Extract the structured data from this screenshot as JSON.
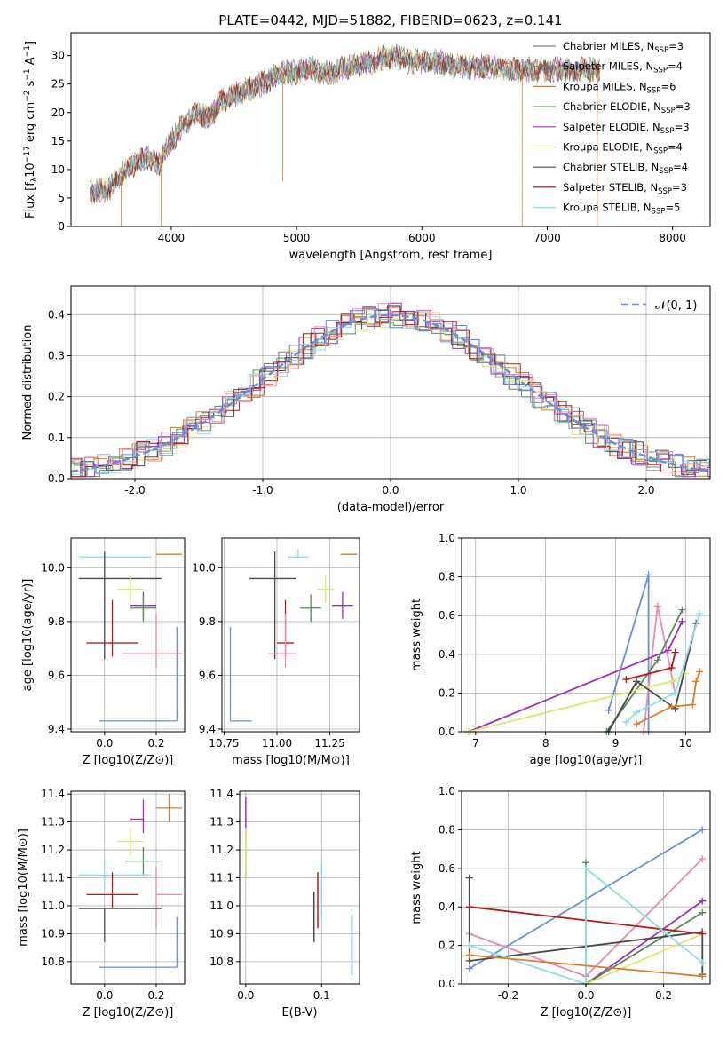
{
  "title": "PLATE=0442, MJD=51882, FIBERID=0623, z=0.141",
  "colors": {
    "Chabrier MILES": "#808080",
    "Salpeter MILES": "#808080",
    "Kroupa MILES": "#e07b28",
    "Chabrier ELODIE": "#5a8a5a",
    "Salpeter ELODIE": "#9b30c0",
    "Kroupa ELODIE": "#dce86a",
    "Chabrier STELIB": "#4a4a4a",
    "Salpeter STELIB": "#b21c1c",
    "Kroupa STELIB": "#8fdde4",
    "pink": "#e88ab4",
    "blue": "#6a8fd8",
    "gray": "#555555"
  },
  "chart_data": [
    {
      "type": "line",
      "xlabel": "wavelength [Angstrom, rest frame]",
      "ylabel_parts": [
        "Flux [f",
        "λ",
        "10",
        "−17",
        " erg cm",
        "−2",
        " s",
        "−1",
        " A",
        "−1",
        "]"
      ],
      "xlim": [
        3200,
        8300
      ],
      "ylim": [
        0,
        34
      ],
      "xticks": [
        4000,
        5000,
        6000,
        7000,
        8000
      ],
      "yticks": [
        0,
        5,
        10,
        15,
        20,
        25,
        30
      ],
      "continuum": {
        "x": [
          3350,
          3500,
          3600,
          3700,
          3800,
          3900,
          4000,
          4100,
          4200,
          4300,
          4400,
          4500,
          4600,
          4700,
          4800,
          4900,
          5000,
          5100,
          5200,
          5300,
          5400,
          5500,
          5600,
          5700,
          5800,
          5900,
          6000,
          6100,
          6200,
          6300,
          6400,
          6500,
          6600,
          6700,
          6800,
          6900,
          7000,
          7100,
          7200,
          7300,
          7400
        ],
        "y": [
          6,
          6.5,
          9,
          11,
          12,
          11,
          15,
          18,
          20,
          19,
          22,
          23,
          24,
          25,
          26,
          27,
          27,
          28,
          27,
          27,
          28,
          28.5,
          29,
          29.5,
          30,
          29,
          29,
          29,
          28.5,
          28,
          28,
          28,
          28,
          27.5,
          27.5,
          27.5,
          27.5,
          27.5,
          27.5,
          27.5,
          27.5
        ]
      },
      "legend": [
        {
          "label": "Chabrier MILES, N",
          "sub": "SSP",
          "val": "=3",
          "color": "#808080"
        },
        {
          "label": "Salpeter MILES, N",
          "sub": "SSP",
          "val": "=4",
          "color": "#808080"
        },
        {
          "label": "Kroupa MILES, N",
          "sub": "SSP",
          "val": "=6",
          "color": "#e07b28"
        },
        {
          "label": "Chabrier ELODIE, N",
          "sub": "SSP",
          "val": "=3",
          "color": "#5a8a5a"
        },
        {
          "label": "Salpeter ELODIE, N",
          "sub": "SSP",
          "val": "=3",
          "color": "#9b30c0"
        },
        {
          "label": "Kroupa ELODIE, N",
          "sub": "SSP",
          "val": "=4",
          "color": "#dce86a"
        },
        {
          "label": "Chabrier STELIB, N",
          "sub": "SSP",
          "val": "=4",
          "color": "#4a4a4a"
        },
        {
          "label": "Salpeter STELIB, N",
          "sub": "SSP",
          "val": "=3",
          "color": "#b21c1c"
        },
        {
          "label": "Kroupa STELIB, N",
          "sub": "SSP",
          "val": "=5",
          "color": "#8fdde4"
        }
      ]
    },
    {
      "type": "histogram",
      "xlabel": "(data-model)/error",
      "ylabel": "Normed distribution",
      "xlim": [
        -2.5,
        2.5
      ],
      "ylim": [
        0,
        0.47
      ],
      "xticks": [
        -2,
        -1,
        0,
        1,
        2
      ],
      "yticks": [
        0.0,
        0.1,
        0.2,
        0.3,
        0.4
      ],
      "legend": "𝒩(0, 1)",
      "bin_width": 0.1,
      "series": [
        {
          "color": "#808080",
          "offset": 0.01
        },
        {
          "color": "#e07b28",
          "offset": -0.02
        },
        {
          "color": "#5a8a5a",
          "offset": 0.025
        },
        {
          "color": "#9b30c0",
          "offset": -0.015
        },
        {
          "color": "#dce86a",
          "offset": 0.02
        },
        {
          "color": "#4a4a4a",
          "offset": -0.025
        },
        {
          "color": "#b21c1c",
          "offset": 0.015
        },
        {
          "color": "#8fdde4",
          "offset": -0.01
        },
        {
          "color": "#e88ab4",
          "offset": 0.005
        },
        {
          "color": "#6a8fd8",
          "offset": -0.005
        }
      ]
    },
    {
      "type": "scatter",
      "xlabel": "Z [log10(Z/Z⊙)]",
      "ylabel": "age  [log10(age/yr)]",
      "xlim": [
        -0.13,
        0.31
      ],
      "ylim": [
        9.39,
        10.11
      ],
      "xticks": [
        0.0,
        0.2
      ],
      "yticks": [
        9.4,
        9.6,
        9.8,
        10.0
      ],
      "points": [
        {
          "x": 0.0,
          "y": 10.04,
          "xerr": [
            0.1,
            0.18
          ],
          "yerr": [
            0.0,
            0.0
          ],
          "color": "#8fdde4"
        },
        {
          "x": 0.25,
          "y": 10.05,
          "xerr": [
            0.05,
            0.05
          ],
          "yerr": [
            0.0,
            0.0
          ],
          "color": "#e07b28"
        },
        {
          "x": 0.0,
          "y": 9.96,
          "xerr": [
            0.1,
            0.22
          ],
          "yerr": [
            0.3,
            0.1
          ],
          "color": "#4a4a4a"
        },
        {
          "x": 0.1,
          "y": 9.92,
          "xerr": [
            0.05,
            0.05
          ],
          "yerr": [
            0.05,
            0.05
          ],
          "color": "#dce86a"
        },
        {
          "x": 0.15,
          "y": 9.86,
          "xerr": [
            0.05,
            0.05
          ],
          "yerr": [
            0.05,
            0.05
          ],
          "color": "#9b30c0"
        },
        {
          "x": 0.15,
          "y": 9.85,
          "xerr": [
            0.05,
            0.05
          ],
          "yerr": [
            0.05,
            0.05
          ],
          "color": "#5a8a5a"
        },
        {
          "x": 0.03,
          "y": 9.72,
          "xerr": [
            0.1,
            0.1
          ],
          "yerr": [
            0.05,
            0.16
          ],
          "color": "#b21c1c"
        },
        {
          "x": 0.2,
          "y": 9.68,
          "xerr": [
            0.13,
            0.1
          ],
          "yerr": [
            0.05,
            0.15
          ],
          "color": "#e88ab4"
        },
        {
          "x": 0.28,
          "y": 9.43,
          "xerr": [
            0.3,
            0.0
          ],
          "yerr": [
            0.0,
            0.35
          ],
          "color": "#6a8fd8"
        }
      ]
    },
    {
      "type": "scatter",
      "xlabel": "mass [log10(M/M⊙)]",
      "ylabel": "",
      "xlim": [
        10.74,
        11.39
      ],
      "ylim": [
        9.39,
        10.11
      ],
      "xticks": [
        10.75,
        11.0,
        11.25
      ],
      "yticks": [
        9.4,
        9.6,
        9.8,
        10.0
      ],
      "points": [
        {
          "x": 11.1,
          "y": 10.04,
          "xerr": [
            0.05,
            0.05
          ],
          "yerr": [
            0.0,
            0.03
          ],
          "color": "#8fdde4"
        },
        {
          "x": 11.35,
          "y": 10.05,
          "xerr": [
            0.05,
            0.03
          ],
          "yerr": [
            0.0,
            0.0
          ],
          "color": "#e07b28"
        },
        {
          "x": 10.99,
          "y": 9.96,
          "xerr": [
            0.12,
            0.1
          ],
          "yerr": [
            0.3,
            0.1
          ],
          "color": "#4a4a4a"
        },
        {
          "x": 11.23,
          "y": 9.92,
          "xerr": [
            0.04,
            0.04
          ],
          "yerr": [
            0.05,
            0.05
          ],
          "color": "#dce86a"
        },
        {
          "x": 11.31,
          "y": 9.86,
          "xerr": [
            0.05,
            0.05
          ],
          "yerr": [
            0.05,
            0.05
          ],
          "color": "#9b30c0"
        },
        {
          "x": 11.16,
          "y": 9.85,
          "xerr": [
            0.05,
            0.05
          ],
          "yerr": [
            0.05,
            0.05
          ],
          "color": "#5a8a5a"
        },
        {
          "x": 11.04,
          "y": 9.72,
          "xerr": [
            0.04,
            0.04
          ],
          "yerr": [
            0.05,
            0.16
          ],
          "color": "#b21c1c"
        },
        {
          "x": 11.04,
          "y": 9.68,
          "xerr": [
            0.08,
            0.05
          ],
          "yerr": [
            0.05,
            0.15
          ],
          "color": "#e88ab4"
        },
        {
          "x": 10.78,
          "y": 9.43,
          "xerr": [
            0.0,
            0.1
          ],
          "yerr": [
            0.0,
            0.35
          ],
          "color": "#6a8fd8"
        }
      ]
    },
    {
      "type": "line",
      "xlabel": "age  [log10(age/yr)]",
      "ylabel": "mass weight",
      "xlim": [
        6.8,
        10.35
      ],
      "ylim": [
        0,
        1
      ],
      "xticks": [
        7,
        8,
        9,
        10
      ],
      "yticks": [
        0.0,
        0.2,
        0.4,
        0.6,
        0.8,
        1.0
      ],
      "series": [
        {
          "color": "#6a8fd8",
          "x": [
            8.9,
            9.47,
            9.47
          ],
          "y": [
            0.11,
            0.81,
            0.0
          ]
        },
        {
          "color": "#e88ab4",
          "x": [
            9.4,
            9.6,
            9.85
          ],
          "y": [
            0.0,
            0.65,
            0.2
          ]
        },
        {
          "color": "#9b30c0",
          "x": [
            6.9,
            9.75,
            9.95
          ],
          "y": [
            0.0,
            0.42,
            0.57
          ]
        },
        {
          "color": "#5a8a5a",
          "x": [
            8.87,
            9.6,
            9.95
          ],
          "y": [
            0.0,
            0.37,
            0.63
          ]
        },
        {
          "color": "#dce86a",
          "x": [
            6.9,
            9.8,
            10.0
          ],
          "y": [
            0.0,
            0.26,
            0.3
          ]
        },
        {
          "color": "#4a4a4a",
          "x": [
            8.9,
            9.3,
            9.85,
            10.15
          ],
          "y": [
            0.0,
            0.26,
            0.12,
            0.56
          ]
        },
        {
          "color": "#b21c1c",
          "x": [
            9.15,
            9.8,
            9.85
          ],
          "y": [
            0.27,
            0.33,
            0.41
          ]
        },
        {
          "color": "#8fdde4",
          "x": [
            9.15,
            9.3,
            9.85,
            10.2
          ],
          "y": [
            0.05,
            0.1,
            0.2,
            0.61
          ]
        },
        {
          "color": "#e07b28",
          "x": [
            9.3,
            9.8,
            10.1,
            10.15,
            10.2
          ],
          "y": [
            0.04,
            0.13,
            0.14,
            0.26,
            0.31
          ]
        }
      ]
    },
    {
      "type": "scatter",
      "xlabel": "Z [log10(Z/Z⊙)]",
      "ylabel": "mass [log10(M/M⊙)]",
      "xlim": [
        -0.13,
        0.31
      ],
      "ylim": [
        10.72,
        11.41
      ],
      "xticks": [
        0.0,
        0.2
      ],
      "yticks": [
        10.8,
        10.9,
        11.0,
        11.1,
        11.2,
        11.3,
        11.4
      ],
      "points": [
        {
          "x": 0.25,
          "y": 11.35,
          "xerr": [
            0.05,
            0.05
          ],
          "yerr": [
            0.05,
            0.05
          ],
          "color": "#e07b28"
        },
        {
          "x": 0.15,
          "y": 11.31,
          "xerr": [
            0.05,
            0.0
          ],
          "yerr": [
            0.05,
            0.07
          ],
          "color": "#9b30c0"
        },
        {
          "x": 0.1,
          "y": 11.23,
          "xerr": [
            0.05,
            0.05
          ],
          "yerr": [
            0.05,
            0.05
          ],
          "color": "#dce86a"
        },
        {
          "x": 0.15,
          "y": 11.16,
          "xerr": [
            0.07,
            0.07
          ],
          "yerr": [
            0.05,
            0.05
          ],
          "color": "#5a8a5a"
        },
        {
          "x": 0.0,
          "y": 11.11,
          "xerr": [
            0.1,
            0.18
          ],
          "yerr": [
            0.05,
            0.05
          ],
          "color": "#8fdde4"
        },
        {
          "x": 0.03,
          "y": 11.04,
          "xerr": [
            0.1,
            0.1
          ],
          "yerr": [
            0.05,
            0.08
          ],
          "color": "#b21c1c"
        },
        {
          "x": 0.2,
          "y": 11.04,
          "xerr": [
            0.0,
            0.1
          ],
          "yerr": [
            0.12,
            0.1
          ],
          "color": "#e88ab4"
        },
        {
          "x": 0.0,
          "y": 10.99,
          "xerr": [
            0.1,
            0.22
          ],
          "yerr": [
            0.12,
            0.0
          ],
          "color": "#4a4a4a"
        },
        {
          "x": 0.28,
          "y": 10.78,
          "xerr": [
            0.3,
            0.0
          ],
          "yerr": [
            0.0,
            0.18
          ],
          "color": "#6a8fd8"
        }
      ]
    },
    {
      "type": "scatter",
      "xlabel": "E(B-V)",
      "ylabel": "",
      "xlim": [
        -0.008,
        0.15
      ],
      "ylim": [
        10.72,
        11.41
      ],
      "xticks": [
        0.0,
        0.1
      ],
      "yticks": [
        10.8,
        10.9,
        11.0,
        11.1,
        11.2,
        11.3,
        11.4
      ],
      "vlines": [
        {
          "x": 0.0,
          "y0": 11.1,
          "y1": 11.39,
          "color": "#9b30c0"
        },
        {
          "x": 0.0,
          "y0": 11.1,
          "y1": 11.28,
          "color": "#dce86a"
        },
        {
          "x": 0.09,
          "y0": 10.87,
          "y1": 11.05,
          "color": "#4a4a4a"
        },
        {
          "x": 0.095,
          "y0": 10.92,
          "y1": 11.12,
          "color": "#b21c1c"
        },
        {
          "x": 0.1,
          "y0": 10.95,
          "y1": 11.16,
          "color": "#8fdde4"
        },
        {
          "x": 0.14,
          "y0": 10.75,
          "y1": 10.97,
          "color": "#6a8fd8"
        }
      ]
    },
    {
      "type": "line",
      "xlabel": "Z [log10(Z/Z⊙)]",
      "ylabel": "mass weight",
      "xlim": [
        -0.32,
        0.32
      ],
      "ylim": [
        0,
        1
      ],
      "xticks": [
        -0.2,
        0.0,
        0.2
      ],
      "yticks": [
        0.0,
        0.2,
        0.4,
        0.6,
        0.8,
        1.0
      ],
      "series": [
        {
          "color": "#6a8fd8",
          "x": [
            -0.3,
            0.3
          ],
          "y": [
            0.08,
            0.8
          ]
        },
        {
          "color": "#e88ab4",
          "x": [
            -0.3,
            0.0,
            0.3
          ],
          "y": [
            0.26,
            0.04,
            0.65
          ]
        },
        {
          "color": "#9b30c0",
          "x": [
            0.0,
            0.3
          ],
          "y": [
            0.0,
            0.43
          ]
        },
        {
          "color": "#5a8a5a",
          "x": [
            0.0,
            0.0,
            0.3
          ],
          "y": [
            0.63,
            0.0,
            0.37
          ]
        },
        {
          "color": "#dce86a",
          "x": [
            0.0,
            0.3
          ],
          "y": [
            0.0,
            0.26
          ]
        },
        {
          "color": "#4a4a4a",
          "x": [
            -0.3,
            -0.3,
            0.3,
            0.3
          ],
          "y": [
            0.55,
            0.12,
            0.27,
            0.05
          ]
        },
        {
          "color": "#b21c1c",
          "x": [
            -0.3,
            0.3
          ],
          "y": [
            0.4,
            0.26
          ]
        },
        {
          "color": "#8fdde4",
          "x": [
            -0.3,
            0.0,
            0.0,
            0.3
          ],
          "y": [
            0.2,
            0.0,
            0.6,
            0.11
          ]
        },
        {
          "color": "#e07b28",
          "x": [
            -0.3,
            0.3
          ],
          "y": [
            0.15,
            0.04
          ]
        }
      ]
    }
  ]
}
